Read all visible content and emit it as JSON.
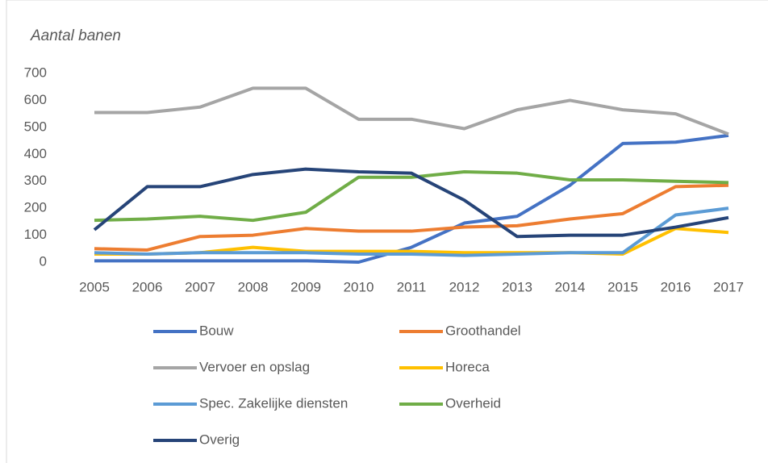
{
  "chart_data": {
    "type": "line",
    "y_label": "Aantal banen",
    "x": [
      "2005",
      "2006",
      "2007",
      "2008",
      "2009",
      "2010",
      "2011",
      "2012",
      "2013",
      "2014",
      "2015",
      "2016",
      "2017"
    ],
    "ylim": [
      0,
      700
    ],
    "yticks": [
      0,
      100,
      200,
      300,
      400,
      500,
      600,
      700
    ],
    "grid": false,
    "legend": "bottom",
    "series": [
      {
        "name": "Bouw",
        "color": "#4472c4",
        "values": [
          5,
          5,
          5,
          5,
          5,
          0,
          55,
          145,
          170,
          285,
          440,
          445,
          470
        ]
      },
      {
        "name": "Groothandel",
        "color": "#ed7d31",
        "values": [
          50,
          45,
          95,
          100,
          125,
          115,
          115,
          130,
          135,
          160,
          180,
          280,
          285
        ]
      },
      {
        "name": "Vervoer en opslag",
        "color": "#a5a5a5",
        "values": [
          555,
          555,
          575,
          645,
          645,
          530,
          530,
          495,
          565,
          600,
          565,
          550,
          475
        ]
      },
      {
        "name": "Horeca",
        "color": "#ffc000",
        "values": [
          30,
          30,
          35,
          55,
          40,
          40,
          40,
          35,
          35,
          35,
          30,
          125,
          110
        ]
      },
      {
        "name": "Spec. Zakelijke diensten",
        "color": "#5b9bd5",
        "values": [
          35,
          30,
          35,
          35,
          35,
          30,
          30,
          25,
          30,
          35,
          35,
          175,
          200
        ]
      },
      {
        "name": "Overheid",
        "color": "#70ad47",
        "values": [
          155,
          160,
          170,
          155,
          185,
          315,
          315,
          335,
          330,
          305,
          305,
          300,
          295
        ]
      },
      {
        "name": "Overig",
        "color": "#264478",
        "values": [
          120,
          280,
          280,
          325,
          345,
          335,
          330,
          230,
          95,
          100,
          100,
          130,
          165
        ]
      }
    ]
  }
}
